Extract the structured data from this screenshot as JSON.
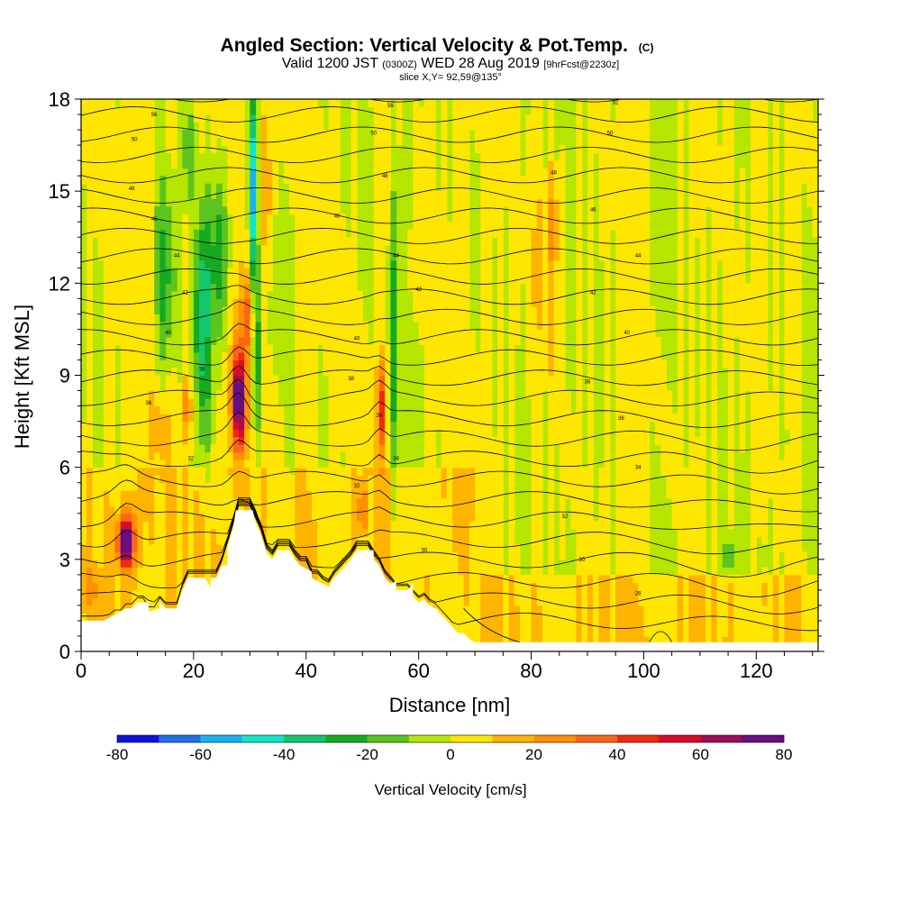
{
  "chart_data": {
    "type": "heatmap",
    "title": "Angled Section: Vertical Velocity & Pot.Temp.",
    "title_badge": "(C)",
    "subtitle": {
      "pre": "Valid 1200 JST",
      "utc": "(0300Z)",
      "main": "WED 28 Aug 2019",
      "fcst": "[9hrFcst@2230z]"
    },
    "slice_label": "slice X,Y= 92,59@135°",
    "xlabel": "Distance [nm]",
    "ylabel": "Height [Kft MSL]",
    "xlim": [
      0,
      131
    ],
    "ylim": [
      0,
      18
    ],
    "x_ticks": [
      "0",
      "20",
      "40",
      "60",
      "80",
      "100",
      "120"
    ],
    "y_ticks": [
      "0",
      "3",
      "6",
      "9",
      "12",
      "15",
      "18"
    ],
    "colorbar": {
      "label": "Vertical Velocity [cm/s]",
      "min": -80,
      "max": 80,
      "step": 10,
      "tick_labels": [
        "-80",
        "-60",
        "-40",
        "-20",
        "0",
        "20",
        "40",
        "60",
        "80"
      ],
      "colors": [
        "#1010e0",
        "#1f6fe8",
        "#15b4f0",
        "#10e6c8",
        "#10c86e",
        "#14aa22",
        "#5cc41e",
        "#b4e600",
        "#ffe600",
        "#ffb400",
        "#ff9000",
        "#ff6418",
        "#f02a10",
        "#d80c28",
        "#a00c5a",
        "#6a0c82"
      ]
    },
    "terrain_profile": [
      [
        0,
        1.0
      ],
      [
        1.5,
        1.0
      ],
      [
        1.5,
        1.0
      ],
      [
        4,
        1.0
      ],
      [
        4,
        1.0
      ],
      [
        6,
        1.2
      ],
      [
        8,
        1.4
      ],
      [
        9,
        1.4
      ],
      [
        10,
        1.6
      ],
      [
        12,
        1.6
      ],
      [
        12,
        1.3
      ],
      [
        14,
        1.4
      ],
      [
        14,
        1.6
      ],
      [
        15,
        1.4
      ],
      [
        17,
        1.4
      ],
      [
        18,
        2.0
      ],
      [
        19,
        2.4
      ],
      [
        22,
        2.4
      ],
      [
        23,
        2.1
      ],
      [
        23,
        2.4
      ],
      [
        24,
        2.4
      ],
      [
        25,
        2.8
      ],
      [
        26,
        2.8
      ],
      [
        26,
        3.4
      ],
      [
        27,
        4.0
      ],
      [
        27.5,
        4.6
      ],
      [
        30.5,
        4.6
      ],
      [
        31,
        4.2
      ],
      [
        32,
        3.8
      ],
      [
        33,
        3.2
      ],
      [
        34,
        3.0
      ],
      [
        35,
        3.3
      ],
      [
        37,
        3.3
      ],
      [
        38,
        3.0
      ],
      [
        39,
        2.8
      ],
      [
        41,
        2.6
      ],
      [
        41,
        2.4
      ],
      [
        43,
        2.2
      ],
      [
        44,
        2.1
      ],
      [
        45,
        2.4
      ],
      [
        46,
        2.6
      ],
      [
        47,
        2.8
      ],
      [
        48,
        3.0
      ],
      [
        49,
        3.3
      ],
      [
        52,
        3.3
      ],
      [
        52,
        3.0
      ],
      [
        53,
        2.8
      ],
      [
        54,
        2.4
      ],
      [
        55,
        2.2
      ],
      [
        56,
        2.3
      ],
      [
        56,
        2.0
      ],
      [
        58,
        2.0
      ],
      [
        59,
        2.2
      ],
      [
        59,
        1.8
      ],
      [
        60,
        1.6
      ],
      [
        61,
        1.7
      ],
      [
        62,
        1.5
      ],
      [
        63,
        1.4
      ],
      [
        64,
        1.2
      ],
      [
        65,
        1.0
      ],
      [
        66,
        0.8
      ],
      [
        67,
        0.6
      ],
      [
        68,
        0.6
      ],
      [
        69,
        0.4
      ],
      [
        70,
        0.3
      ],
      [
        71,
        0.3
      ],
      [
        73,
        0.3
      ],
      [
        131,
        0.3
      ]
    ],
    "updrafts": [
      {
        "x": 8,
        "y": 3.6,
        "peak": 80,
        "sx": 1.5,
        "sy": 0.85
      },
      {
        "x": 28,
        "y": 8.2,
        "peak": 82,
        "sx": 1.2,
        "sy": 1.6
      },
      {
        "x": 29.5,
        "y": 11.0,
        "peak": 30,
        "sx": 1.0,
        "sy": 1.2
      },
      {
        "x": 14,
        "y": 7.2,
        "peak": 15,
        "sx": 1.5,
        "sy": 1.0
      },
      {
        "x": 19,
        "y": 8.0,
        "peak": 22,
        "sx": 1.2,
        "sy": 1.0
      },
      {
        "x": 33,
        "y": 15.0,
        "peak": 18,
        "sx": 1.2,
        "sy": 2.5
      },
      {
        "x": 50,
        "y": 4.6,
        "peak": 40,
        "sx": 0.6,
        "sy": 0.7
      },
      {
        "x": 53.5,
        "y": 8.0,
        "peak": 40,
        "sx": 0.8,
        "sy": 1.6
      },
      {
        "x": 84,
        "y": 14.0,
        "peak": 20,
        "sx": 2.0,
        "sy": 2.0
      },
      {
        "x": 2,
        "y": 2.0,
        "peak": 14,
        "sx": 2.0,
        "sy": 0.6
      }
    ],
    "downdrafts": [
      {
        "x": 21.5,
        "y": 11.0,
        "peak": -40,
        "sx": 1.4,
        "sy": 4.0
      },
      {
        "x": 24.5,
        "y": 13.0,
        "peak": -35,
        "sx": 1.8,
        "sy": 3.0
      },
      {
        "x": 15,
        "y": 12.0,
        "peak": -25,
        "sx": 1.8,
        "sy": 3.0
      },
      {
        "x": 30.5,
        "y": 15.0,
        "peak": -50,
        "sx": 0.7,
        "sy": 3.0
      },
      {
        "x": 31.5,
        "y": 9.5,
        "peak": -25,
        "sx": 0.9,
        "sy": 3.0
      },
      {
        "x": 19,
        "y": 16.5,
        "peak": -22,
        "sx": 1.6,
        "sy": 1.8
      },
      {
        "x": 37,
        "y": 6.5,
        "peak": -12,
        "sx": 1.0,
        "sy": 1.2
      },
      {
        "x": 55.5,
        "y": 10.0,
        "peak": -22,
        "sx": 0.8,
        "sy": 6.0
      },
      {
        "x": 58,
        "y": 16.0,
        "peak": -12,
        "sx": 1.2,
        "sy": 2.0
      },
      {
        "x": 115,
        "y": 3.1,
        "peak": -22,
        "sx": 1.0,
        "sy": 0.6
      },
      {
        "x": 121,
        "y": 3.2,
        "peak": -15,
        "sx": 0.7,
        "sy": 0.6
      },
      {
        "x": 125,
        "y": 7.0,
        "peak": -15,
        "sx": 0.8,
        "sy": 0.5
      }
    ],
    "isentrope_labels": [
      {
        "x": 13,
        "y": 17.5,
        "text": "56"
      },
      {
        "x": 9.5,
        "y": 16.7,
        "text": "50"
      },
      {
        "x": 9,
        "y": 15.1,
        "text": "48"
      },
      {
        "x": 13,
        "y": 14.1,
        "text": "46"
      },
      {
        "x": 17,
        "y": 12.9,
        "text": "44"
      },
      {
        "x": 18.5,
        "y": 11.7,
        "text": "42"
      },
      {
        "x": 15.5,
        "y": 10.4,
        "text": "40"
      },
      {
        "x": 21.5,
        "y": 9.2,
        "text": "38"
      },
      {
        "x": 12,
        "y": 8.1,
        "text": "36"
      },
      {
        "x": 19.5,
        "y": 6.3,
        "text": "32"
      },
      {
        "x": 55,
        "y": 17.8,
        "text": "56"
      },
      {
        "x": 52,
        "y": 16.9,
        "text": "50"
      },
      {
        "x": 54,
        "y": 15.5,
        "text": "48"
      },
      {
        "x": 45.5,
        "y": 14.2,
        "text": "46"
      },
      {
        "x": 56,
        "y": 12.9,
        "text": "44"
      },
      {
        "x": 60,
        "y": 11.8,
        "text": "42"
      },
      {
        "x": 49,
        "y": 10.2,
        "text": "40"
      },
      {
        "x": 48,
        "y": 8.9,
        "text": "38"
      },
      {
        "x": 53,
        "y": 7.7,
        "text": "36"
      },
      {
        "x": 56,
        "y": 6.3,
        "text": "34"
      },
      {
        "x": 49,
        "y": 5.4,
        "text": "32"
      },
      {
        "x": 61,
        "y": 3.3,
        "text": "30"
      },
      {
        "x": 95,
        "y": 17.9,
        "text": "52"
      },
      {
        "x": 94,
        "y": 16.9,
        "text": "50"
      },
      {
        "x": 84,
        "y": 15.6,
        "text": "48"
      },
      {
        "x": 91,
        "y": 14.4,
        "text": "46"
      },
      {
        "x": 99,
        "y": 12.9,
        "text": "44"
      },
      {
        "x": 91,
        "y": 11.7,
        "text": "42"
      },
      {
        "x": 97,
        "y": 10.4,
        "text": "40"
      },
      {
        "x": 90,
        "y": 8.8,
        "text": "38"
      },
      {
        "x": 96,
        "y": 7.6,
        "text": "36"
      },
      {
        "x": 99,
        "y": 6.0,
        "text": "34"
      },
      {
        "x": 86,
        "y": 4.4,
        "text": "32"
      },
      {
        "x": 89,
        "y": 3.0,
        "text": "30"
      },
      {
        "x": 99,
        "y": 1.9,
        "text": "28"
      }
    ]
  }
}
